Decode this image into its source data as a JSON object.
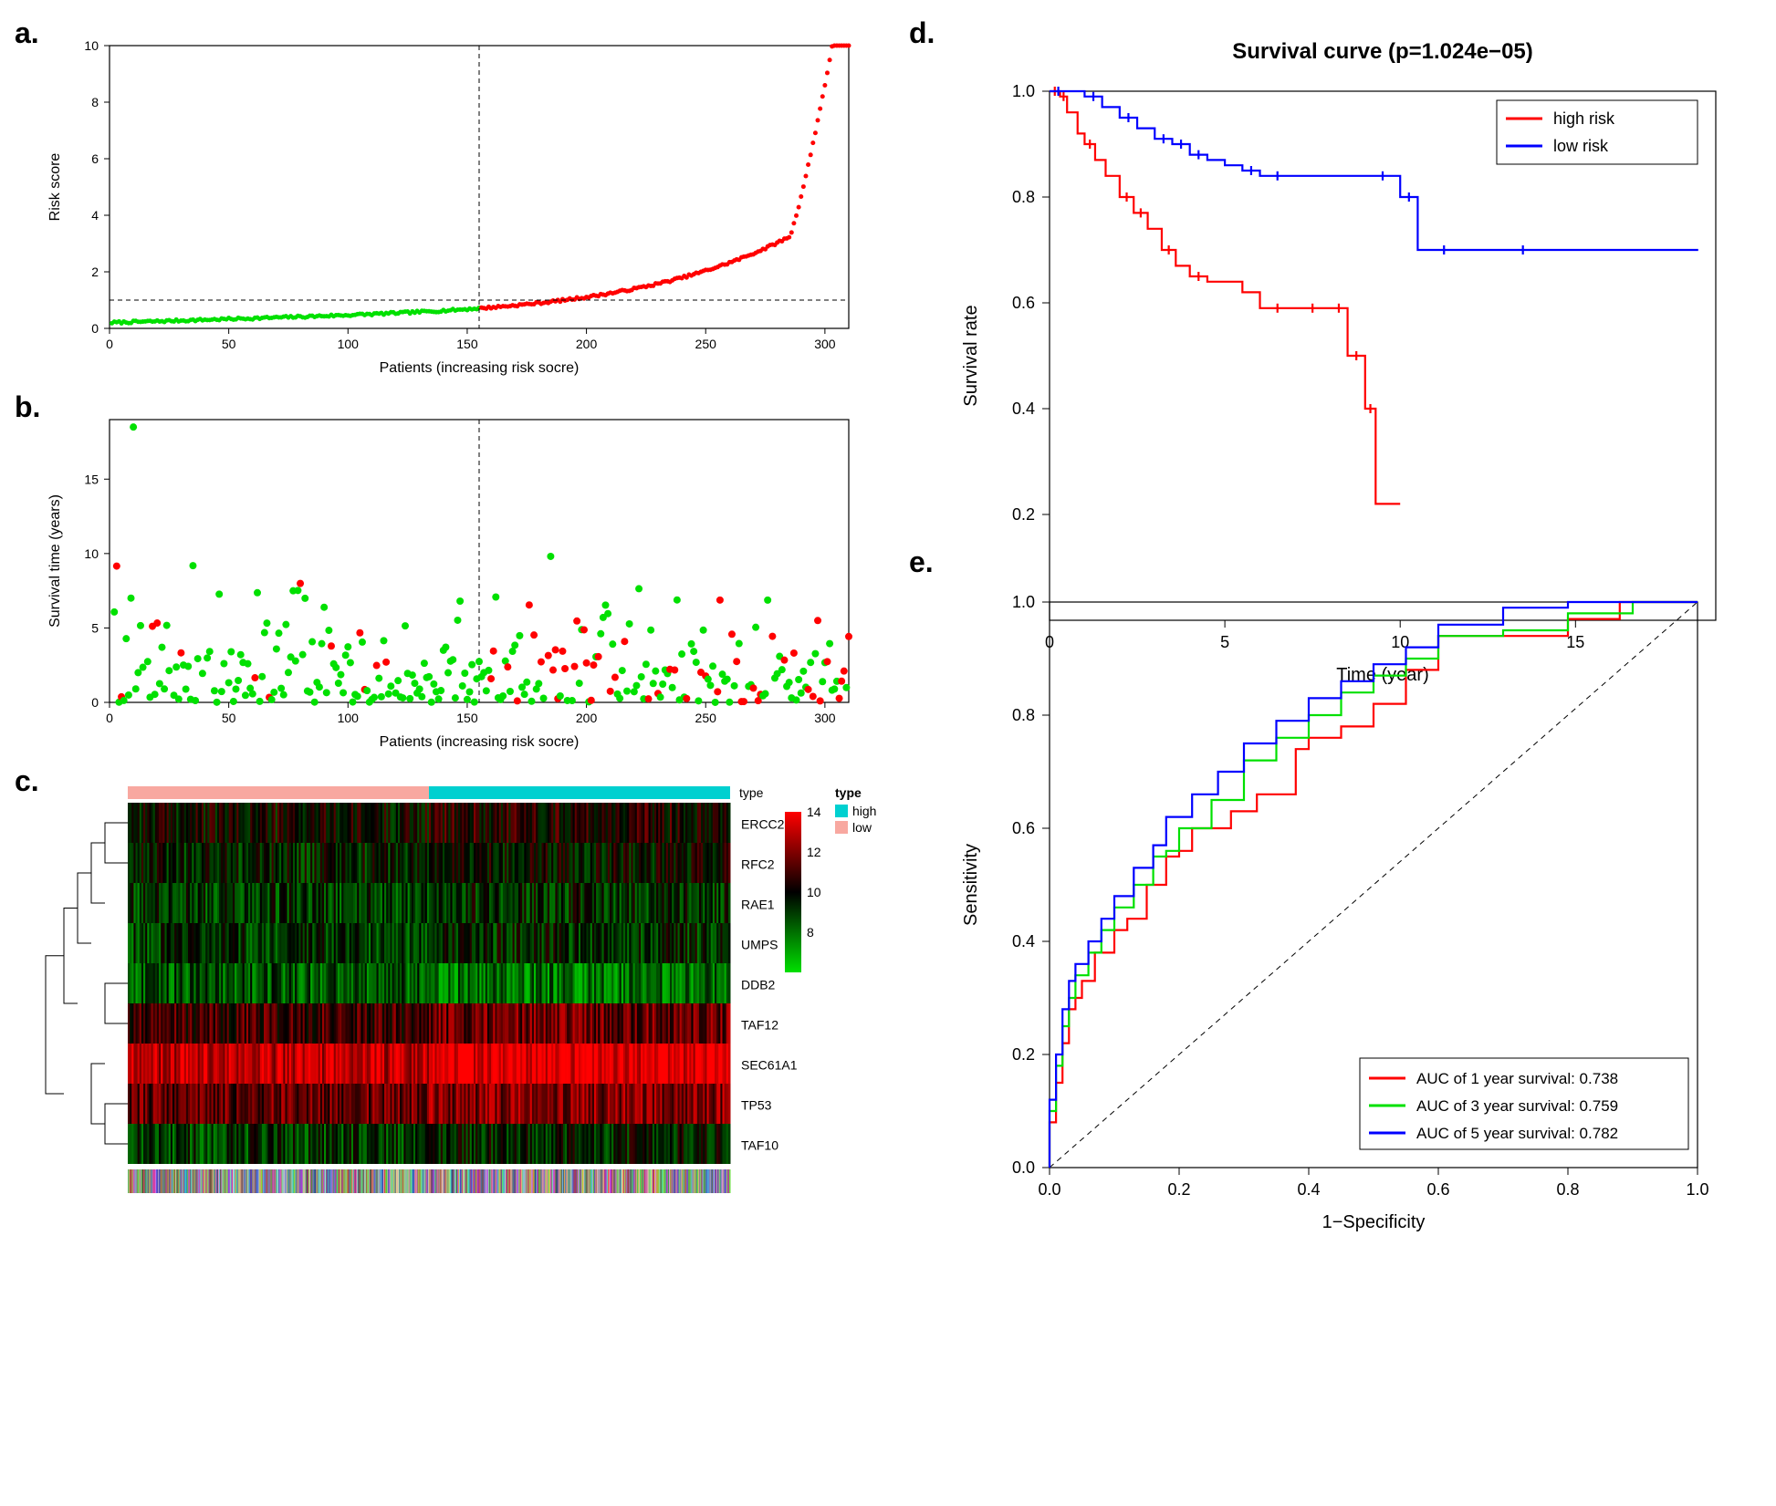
{
  "labels": {
    "a": "a.",
    "b": "b.",
    "c": "c.",
    "d": "d.",
    "e": "e."
  },
  "colors": {
    "green": "#00e000",
    "red": "#ff0000",
    "blue": "#0000ff",
    "black": "#000000",
    "cyan": "#00d0d0",
    "salmon": "#f8a8a0",
    "hm_green": "#00e000",
    "hm_red": "#ff0000",
    "hm_mid": "#000000",
    "bg": "#ffffff",
    "grid": "#000000"
  },
  "panelA": {
    "type": "scatter-line",
    "xlabel": "Patients (increasing risk socre)",
    "ylabel": "Risk score",
    "xlim": [
      0,
      310
    ],
    "ylim": [
      0,
      10
    ],
    "xticks": [
      0,
      50,
      100,
      150,
      200,
      250,
      300
    ],
    "yticks": [
      0,
      2,
      4,
      6,
      8,
      10
    ],
    "cutoff_x": 155,
    "cutoff_y": 1.0,
    "low_color": "#00e000",
    "high_color": "#ff0000",
    "n": 310,
    "curve": "exp"
  },
  "panelB": {
    "type": "scatter",
    "xlabel": "Patients (increasing risk socre)",
    "ylabel": "Survival time (years)",
    "xlim": [
      0,
      310
    ],
    "ylim": [
      0,
      19
    ],
    "xticks": [
      0,
      50,
      100,
      150,
      200,
      250,
      300
    ],
    "yticks": [
      0,
      5,
      10,
      15
    ],
    "cutoff_x": 155,
    "alive_color": "#00e000",
    "dead_color": "#ff0000",
    "n": 290,
    "dead_frac_low": 0.12,
    "dead_frac_high": 0.3,
    "marker_r": 4
  },
  "panelC": {
    "type": "heatmap",
    "genes": [
      "ERCC2",
      "RFC2",
      "RAE1",
      "UMPS",
      "DDB2",
      "TAF12",
      "SEC61A1",
      "TP53",
      "TAF10"
    ],
    "n_cols": 310,
    "cutoff_col": 155,
    "type_bar": {
      "low_color": "#f8a8a0",
      "high_color": "#00d0d0",
      "label": "type",
      "low_name": "low",
      "high_name": "high"
    },
    "scale": {
      "min": 6,
      "mid": 10,
      "max": 14,
      "ticks": [
        8,
        10,
        12,
        14
      ],
      "low_color": "#00e000",
      "mid_color": "#000000",
      "high_color": "#ff0000"
    },
    "row_base": [
      10,
      9.5,
      9,
      9,
      8.5,
      11,
      13,
      11.5,
      9
    ],
    "row_diff": [
      0.5,
      0.4,
      0.3,
      0.3,
      -0.5,
      0.6,
      0.8,
      0.5,
      0.5
    ]
  },
  "panelD": {
    "type": "survival",
    "title": "Survival curve (p=1.024e−05)",
    "xlabel": "Time (year)",
    "ylabel": "Survival rate",
    "xlim": [
      0,
      19
    ],
    "ylim": [
      0,
      1.0
    ],
    "xticks": [
      0,
      5,
      10,
      15
    ],
    "yticks": [
      0.2,
      0.4,
      0.6,
      0.8,
      1.0
    ],
    "legend": {
      "items": [
        {
          "label": "high risk",
          "color": "#ff0000"
        },
        {
          "label": "low risk",
          "color": "#0000ff"
        }
      ]
    },
    "curves": {
      "high": {
        "color": "#ff0000",
        "line_width": 2.2,
        "points": [
          [
            0,
            1.0
          ],
          [
            0.3,
            0.99
          ],
          [
            0.5,
            0.96
          ],
          [
            0.8,
            0.92
          ],
          [
            1.0,
            0.9
          ],
          [
            1.3,
            0.87
          ],
          [
            1.6,
            0.84
          ],
          [
            2.0,
            0.8
          ],
          [
            2.4,
            0.77
          ],
          [
            2.8,
            0.74
          ],
          [
            3.2,
            0.7
          ],
          [
            3.6,
            0.67
          ],
          [
            4.0,
            0.65
          ],
          [
            4.5,
            0.64
          ],
          [
            5.0,
            0.64
          ],
          [
            5.5,
            0.62
          ],
          [
            6.0,
            0.59
          ],
          [
            7.0,
            0.59
          ],
          [
            8.0,
            0.59
          ],
          [
            8.5,
            0.5
          ],
          [
            9.0,
            0.4
          ],
          [
            9.3,
            0.22
          ],
          [
            10.0,
            0.22
          ]
        ]
      },
      "low": {
        "color": "#0000ff",
        "line_width": 2.2,
        "points": [
          [
            0,
            1.0
          ],
          [
            0.5,
            1.0
          ],
          [
            1.0,
            0.99
          ],
          [
            1.5,
            0.97
          ],
          [
            2.0,
            0.95
          ],
          [
            2.5,
            0.93
          ],
          [
            3.0,
            0.91
          ],
          [
            3.5,
            0.9
          ],
          [
            4.0,
            0.88
          ],
          [
            4.5,
            0.87
          ],
          [
            5.0,
            0.86
          ],
          [
            5.5,
            0.85
          ],
          [
            6.0,
            0.84
          ],
          [
            7.0,
            0.84
          ],
          [
            8.0,
            0.84
          ],
          [
            9.0,
            0.84
          ],
          [
            10.0,
            0.8
          ],
          [
            10.5,
            0.7
          ],
          [
            12.0,
            0.7
          ],
          [
            15.0,
            0.7
          ],
          [
            18.5,
            0.7
          ]
        ]
      }
    }
  },
  "panelE": {
    "type": "roc",
    "xlabel": "1−Specificity",
    "ylabel": "Sensitivity",
    "xlim": [
      0,
      1
    ],
    "ylim": [
      0,
      1
    ],
    "ticks": [
      0.0,
      0.2,
      0.4,
      0.6,
      0.8,
      1.0
    ],
    "diag_color": "#000000",
    "legend": {
      "items": [
        {
          "label": "AUC of 1 year survival:  0.738",
          "color": "#ff0000"
        },
        {
          "label": "AUC of 3 year survival:  0.759",
          "color": "#00e000"
        },
        {
          "label": "AUC of 5 year survival:  0.782",
          "color": "#0000ff"
        }
      ]
    },
    "curves": {
      "y1": {
        "color": "#ff0000",
        "points": [
          [
            0,
            0
          ],
          [
            0.01,
            0.08
          ],
          [
            0.02,
            0.15
          ],
          [
            0.03,
            0.22
          ],
          [
            0.04,
            0.28
          ],
          [
            0.05,
            0.3
          ],
          [
            0.07,
            0.33
          ],
          [
            0.1,
            0.38
          ],
          [
            0.12,
            0.42
          ],
          [
            0.15,
            0.44
          ],
          [
            0.18,
            0.5
          ],
          [
            0.2,
            0.55
          ],
          [
            0.22,
            0.56
          ],
          [
            0.28,
            0.6
          ],
          [
            0.32,
            0.63
          ],
          [
            0.38,
            0.66
          ],
          [
            0.4,
            0.74
          ],
          [
            0.45,
            0.76
          ],
          [
            0.5,
            0.78
          ],
          [
            0.55,
            0.82
          ],
          [
            0.6,
            0.88
          ],
          [
            0.62,
            0.94
          ],
          [
            0.8,
            0.94
          ],
          [
            0.88,
            0.97
          ],
          [
            1.0,
            1.0
          ]
        ]
      },
      "y3": {
        "color": "#00e000",
        "points": [
          [
            0,
            0
          ],
          [
            0.01,
            0.1
          ],
          [
            0.02,
            0.18
          ],
          [
            0.03,
            0.25
          ],
          [
            0.04,
            0.3
          ],
          [
            0.06,
            0.34
          ],
          [
            0.08,
            0.38
          ],
          [
            0.1,
            0.42
          ],
          [
            0.13,
            0.46
          ],
          [
            0.16,
            0.5
          ],
          [
            0.18,
            0.55
          ],
          [
            0.2,
            0.56
          ],
          [
            0.25,
            0.6
          ],
          [
            0.3,
            0.65
          ],
          [
            0.35,
            0.72
          ],
          [
            0.4,
            0.76
          ],
          [
            0.45,
            0.8
          ],
          [
            0.5,
            0.84
          ],
          [
            0.55,
            0.87
          ],
          [
            0.6,
            0.9
          ],
          [
            0.7,
            0.94
          ],
          [
            0.8,
            0.95
          ],
          [
            0.9,
            0.98
          ],
          [
            1.0,
            1.0
          ]
        ]
      },
      "y5": {
        "color": "#0000ff",
        "points": [
          [
            0,
            0
          ],
          [
            0.01,
            0.12
          ],
          [
            0.02,
            0.2
          ],
          [
            0.03,
            0.28
          ],
          [
            0.04,
            0.33
          ],
          [
            0.06,
            0.36
          ],
          [
            0.08,
            0.4
          ],
          [
            0.1,
            0.44
          ],
          [
            0.13,
            0.48
          ],
          [
            0.16,
            0.53
          ],
          [
            0.18,
            0.57
          ],
          [
            0.22,
            0.62
          ],
          [
            0.26,
            0.66
          ],
          [
            0.3,
            0.7
          ],
          [
            0.35,
            0.75
          ],
          [
            0.4,
            0.79
          ],
          [
            0.45,
            0.83
          ],
          [
            0.5,
            0.86
          ],
          [
            0.55,
            0.89
          ],
          [
            0.6,
            0.92
          ],
          [
            0.7,
            0.96
          ],
          [
            0.8,
            0.99
          ],
          [
            0.9,
            1.0
          ],
          [
            1.0,
            1.0
          ]
        ]
      }
    },
    "line_width": 2.2
  }
}
